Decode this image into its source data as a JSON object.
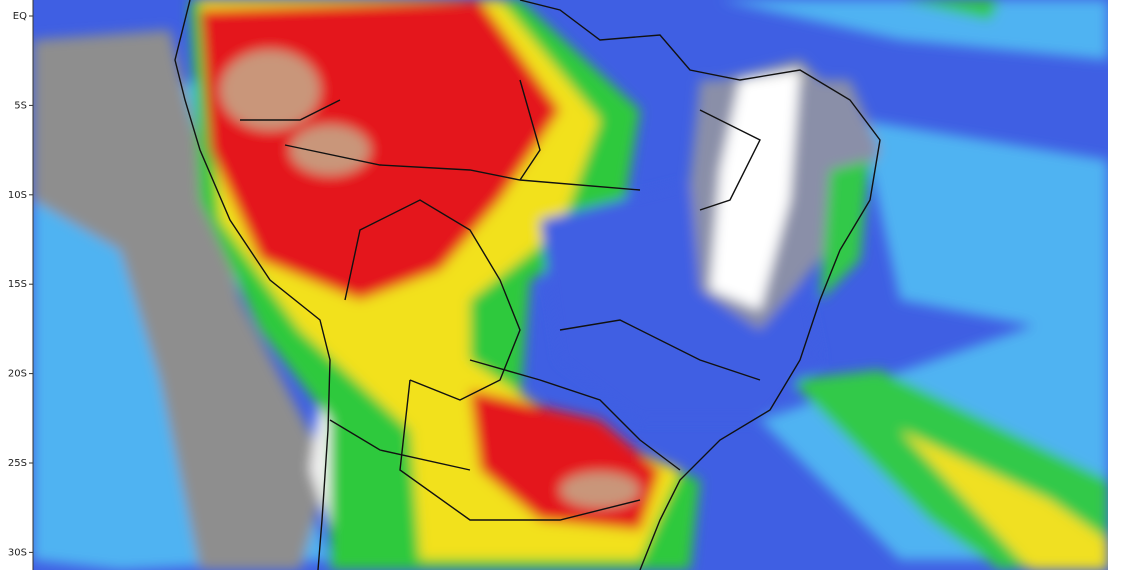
{
  "map": {
    "lat_labels": [
      "EQ",
      "5S",
      "10S",
      "15S",
      "20S",
      "25S",
      "30S"
    ]
  }
}
